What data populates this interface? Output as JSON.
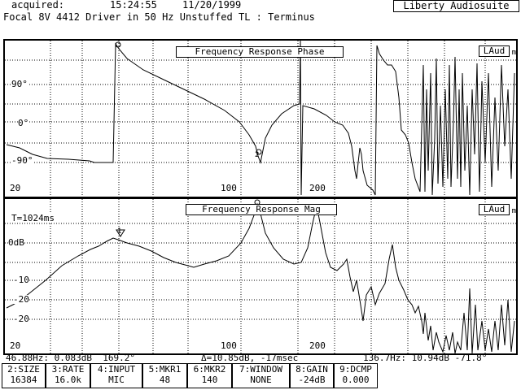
{
  "header": {
    "acquired_label": "acquired:",
    "time": "15:24:55",
    "date": "11/20/1999",
    "brand": "Liberty Audiosuite",
    "title": "Focal 8V 4412 Driver in 50 Hz Unstuffed TL : Terminus"
  },
  "phase_panel": {
    "title": "Frequency Response Phase",
    "badge": "LAud",
    "badge_sub": "m",
    "y_labels": [
      "90°",
      "0°",
      "-90°"
    ],
    "x_labels": [
      "20",
      "100",
      "200"
    ],
    "marker1": "1",
    "marker2": "2"
  },
  "mag_panel": {
    "title": "Frequency Response Mag",
    "badge": "LAud",
    "badge_sub": "m",
    "t_label": "T=1024ms",
    "y_labels": [
      "0dB",
      "-10",
      "-20",
      "-20"
    ],
    "x_labels": [
      "20",
      "100",
      "200"
    ],
    "marker1": "1",
    "marker2": "2"
  },
  "status": {
    "left": "46.88Hz: 0.083dB  169.2°",
    "mid": "Δ=10.85dB, -17msec",
    "right": "136.7Hz: 10.94dB -71.8°"
  },
  "softkeys": [
    {
      "label": "2:SIZE",
      "value": "16384"
    },
    {
      "label": "3:RATE",
      "value": "16.0k"
    },
    {
      "label": "4:INPUT",
      "value": "MIC"
    },
    {
      "label": "5:MKR1",
      "value": "48"
    },
    {
      "label": "6:MKR2",
      "value": "140"
    },
    {
      "label": "7:WINDOW",
      "value": "NONE"
    },
    {
      "label": "8:GAIN",
      "value": "-24dB"
    },
    {
      "label": "9:DCMP",
      "value": "0.000"
    }
  ]
}
